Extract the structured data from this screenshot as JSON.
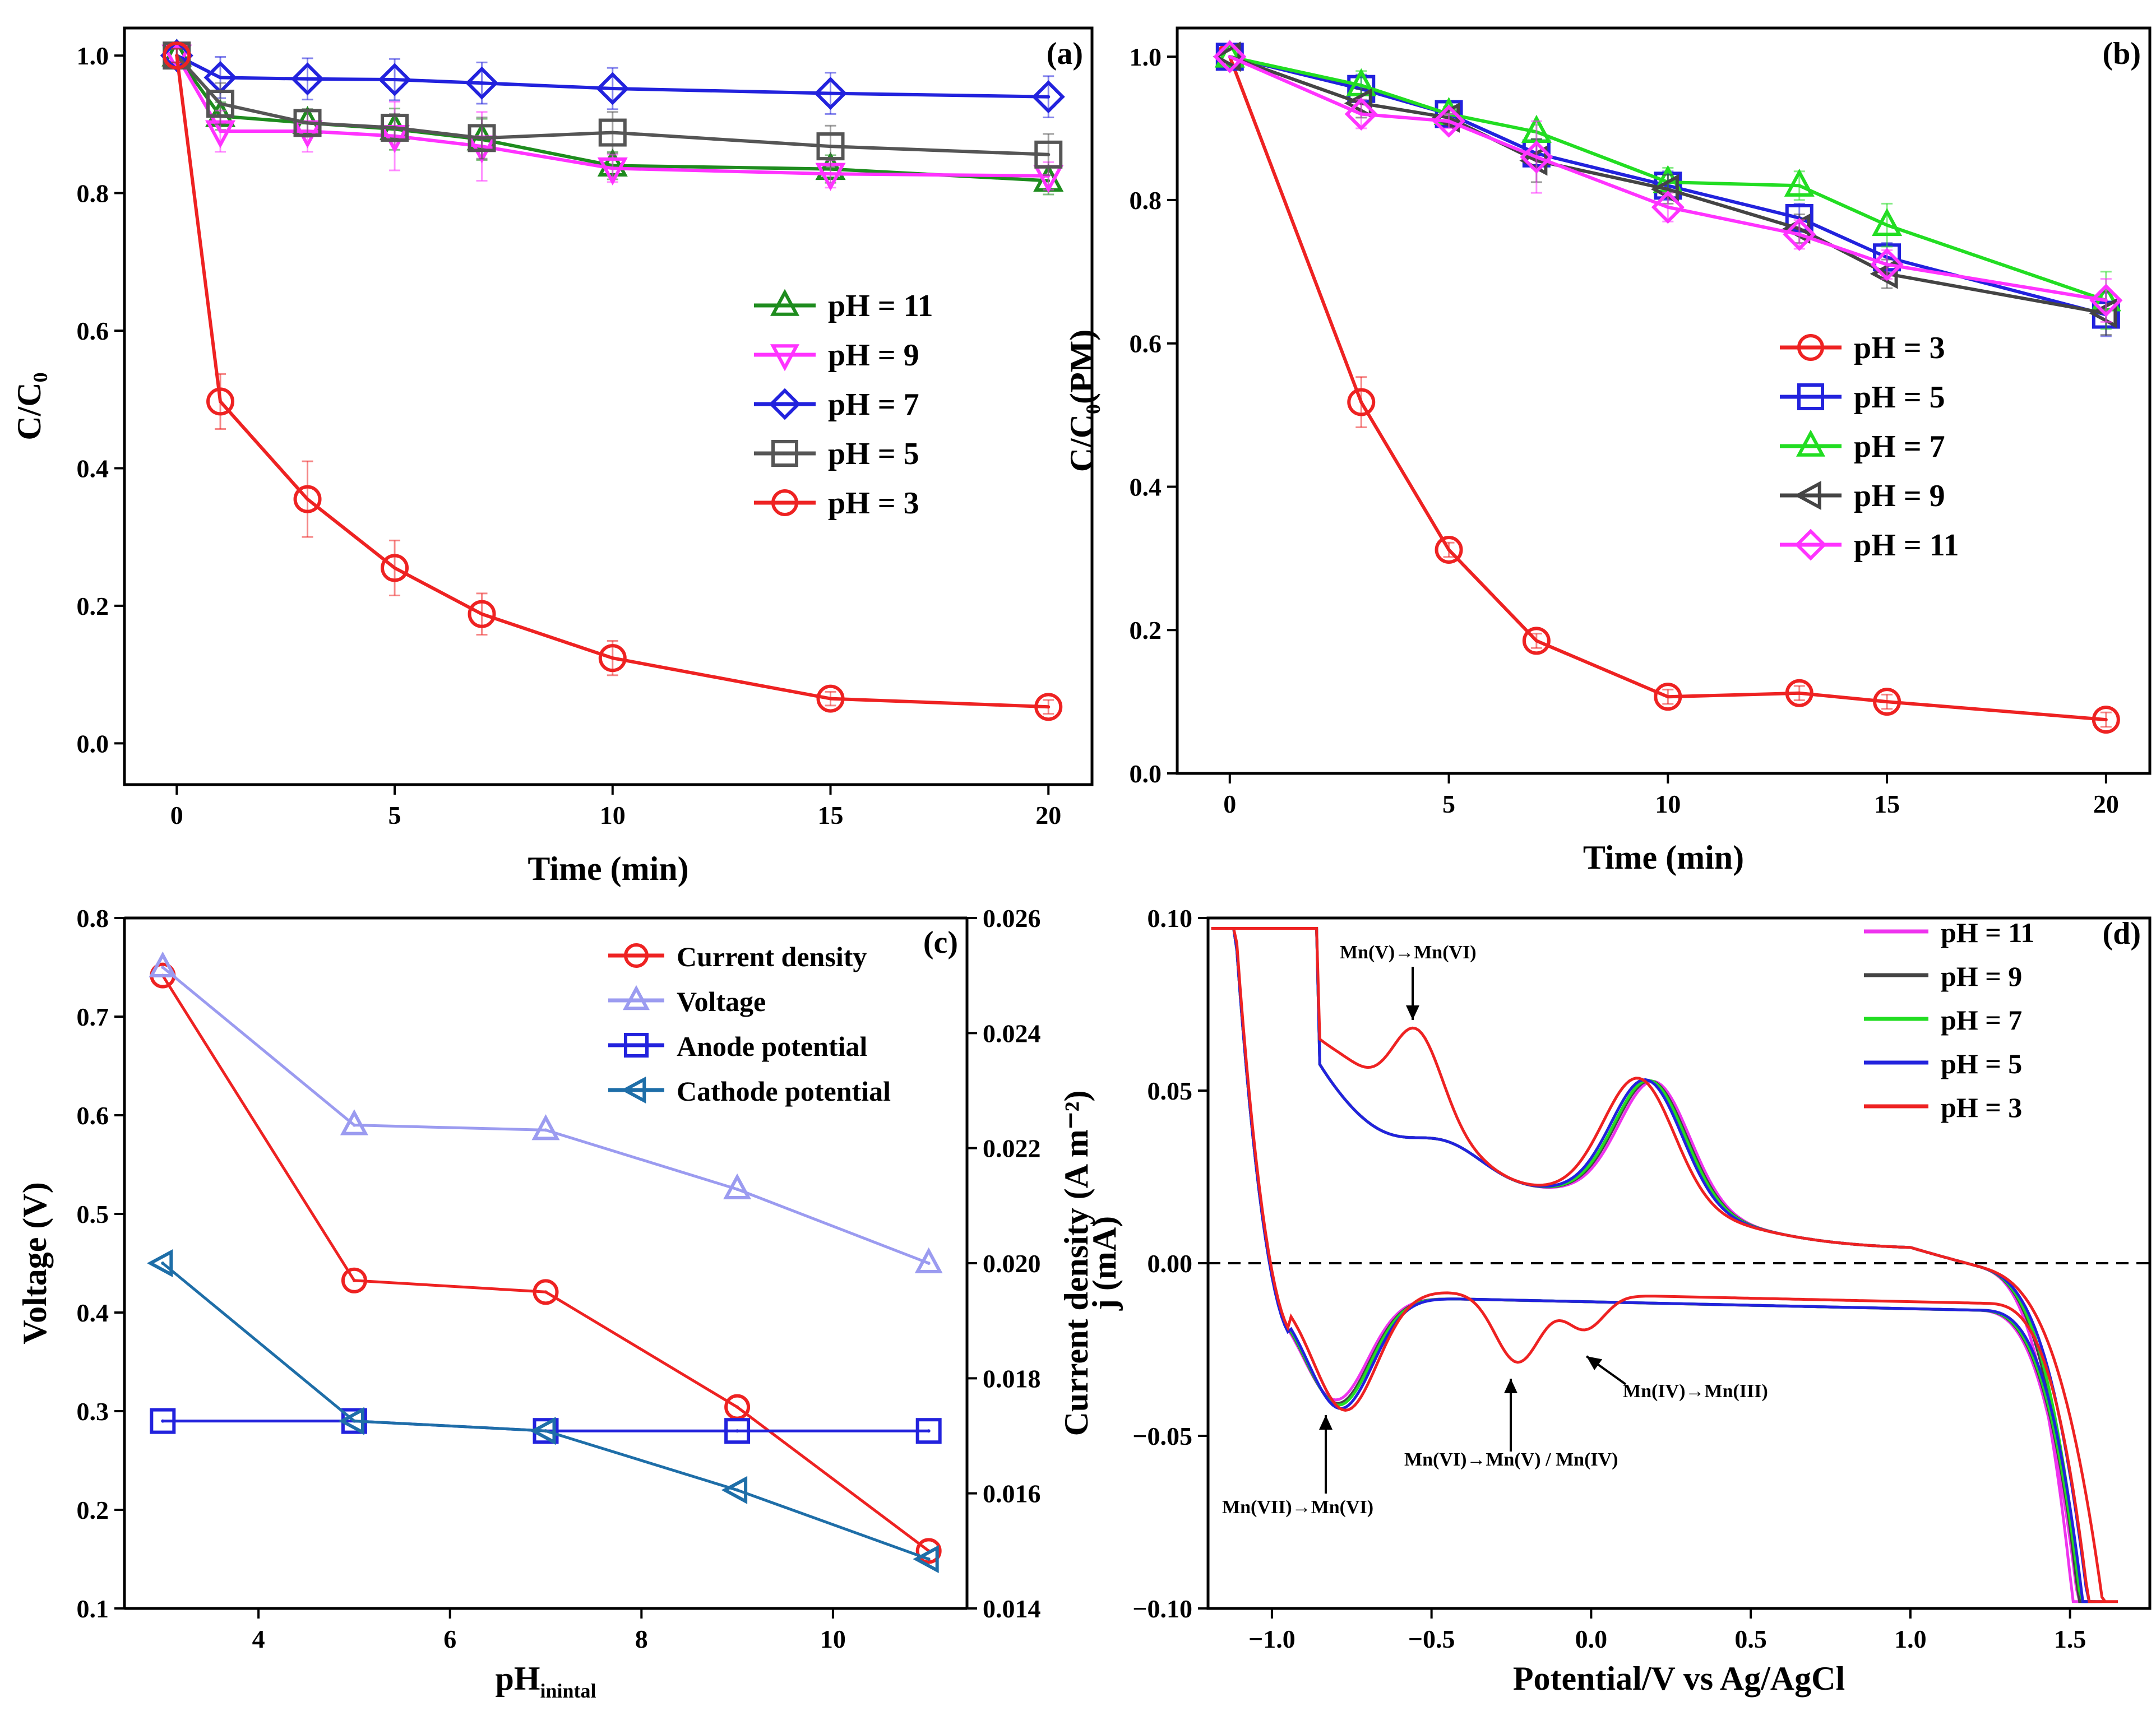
{
  "chart_data": [
    {
      "panel": "(a)",
      "type": "line",
      "xlabel": "Time (min)",
      "ylabel": "C/C₀",
      "xlim": [
        -1.2,
        21
      ],
      "ylim": [
        -0.06,
        1.04
      ],
      "xticks": [
        0,
        5,
        10,
        15,
        20
      ],
      "xtick_labels": [
        "0",
        "5",
        "10",
        "15",
        "20"
      ],
      "yticks": [
        0.0,
        0.2,
        0.4,
        0.6,
        0.8,
        1.0
      ],
      "ytick_labels": [
        "0.0",
        "0.2",
        "0.4",
        "0.6",
        "0.8",
        "1.0"
      ],
      "legend_position": "right-middle",
      "series": [
        {
          "name": "pH = 11",
          "color": "#1e8c1e",
          "marker": "triangle-up",
          "x": [
            0,
            1,
            3,
            5,
            7,
            10,
            15,
            20
          ],
          "y": [
            1.0,
            0.912,
            0.902,
            0.893,
            0.878,
            0.84,
            0.835,
            0.818
          ],
          "err": [
            0.01,
            0.02,
            0.02,
            0.03,
            0.03,
            0.02,
            0.02,
            0.02
          ]
        },
        {
          "name": "pH = 9",
          "color": "#ff33ff",
          "marker": "triangle-down",
          "x": [
            0,
            1,
            3,
            5,
            7,
            10,
            15,
            20
          ],
          "y": [
            1.0,
            0.89,
            0.89,
            0.883,
            0.868,
            0.836,
            0.828,
            0.825
          ],
          "err": [
            0.01,
            0.03,
            0.03,
            0.05,
            0.05,
            0.02,
            0.02,
            0.02
          ]
        },
        {
          "name": "pH = 7",
          "color": "#2222dd",
          "marker": "diamond",
          "x": [
            0,
            1,
            3,
            5,
            7,
            10,
            15,
            20
          ],
          "y": [
            1.0,
            0.968,
            0.966,
            0.965,
            0.96,
            0.952,
            0.945,
            0.94
          ],
          "err": [
            0.01,
            0.03,
            0.03,
            0.03,
            0.03,
            0.03,
            0.03,
            0.03
          ]
        },
        {
          "name": "pH = 5",
          "color": "#555555",
          "marker": "square",
          "x": [
            0,
            1,
            3,
            5,
            7,
            10,
            15,
            20
          ],
          "y": [
            1.0,
            0.93,
            0.902,
            0.895,
            0.88,
            0.888,
            0.868,
            0.856
          ],
          "err": [
            0.01,
            0.03,
            0.02,
            0.02,
            0.03,
            0.03,
            0.03,
            0.03
          ]
        },
        {
          "name": "pH = 3",
          "color": "#ee2222",
          "marker": "circle",
          "x": [
            0,
            1,
            3,
            5,
            7,
            10,
            15,
            20
          ],
          "y": [
            1.0,
            0.497,
            0.355,
            0.255,
            0.188,
            0.124,
            0.065,
            0.053
          ],
          "err": [
            0.01,
            0.04,
            0.055,
            0.04,
            0.03,
            0.025,
            0.01,
            0.01
          ]
        }
      ]
    },
    {
      "panel": "(b)",
      "type": "line",
      "xlabel": "Time (min)",
      "ylabel": "C/C₀(PM)",
      "xlim": [
        -1.2,
        21
      ],
      "ylim": [
        0,
        1.04
      ],
      "xticks": [
        0,
        5,
        10,
        15,
        20
      ],
      "xtick_labels": [
        "0",
        "5",
        "10",
        "15",
        "20"
      ],
      "yticks": [
        0.0,
        0.2,
        0.4,
        0.6,
        0.8,
        1.0
      ],
      "ytick_labels": [
        "0.0",
        "0.2",
        "0.4",
        "0.6",
        "0.8",
        "1.0"
      ],
      "legend_position": "right-middle",
      "series": [
        {
          "name": "pH = 3",
          "color": "#ee2222",
          "marker": "circle",
          "x": [
            0,
            3,
            5,
            7,
            10,
            13,
            15,
            20
          ],
          "y": [
            1.0,
            0.518,
            0.312,
            0.185,
            0.107,
            0.112,
            0.1,
            0.075
          ],
          "err": [
            0,
            0.035,
            0.01,
            0.01,
            0.01,
            0.01,
            0.01,
            0.01
          ]
        },
        {
          "name": "pH = 5",
          "color": "#2222dd",
          "marker": "square",
          "x": [
            0,
            3,
            5,
            7,
            10,
            13,
            15,
            20
          ],
          "y": [
            1.0,
            0.955,
            0.92,
            0.865,
            0.82,
            0.775,
            0.72,
            0.64
          ],
          "err": [
            0,
            0.02,
            0.01,
            0.02,
            0.02,
            0.02,
            0.02,
            0.03
          ]
        },
        {
          "name": "pH = 7",
          "color": "#22dd22",
          "marker": "triangle-up",
          "x": [
            0,
            3,
            5,
            7,
            10,
            13,
            15,
            20
          ],
          "y": [
            1.0,
            0.96,
            0.92,
            0.895,
            0.825,
            0.82,
            0.765,
            0.66
          ],
          "err": [
            0,
            0.02,
            0.01,
            0.01,
            0.02,
            0.02,
            0.03,
            0.04
          ]
        },
        {
          "name": "pH = 9",
          "color": "#444444",
          "marker": "triangle-left",
          "x": [
            0,
            3,
            5,
            7,
            10,
            13,
            15,
            20
          ],
          "y": [
            1.0,
            0.935,
            0.915,
            0.855,
            0.815,
            0.76,
            0.697,
            0.642
          ],
          "err": [
            0,
            0.02,
            0.01,
            0.03,
            0.02,
            0.02,
            0.02,
            0.03
          ]
        },
        {
          "name": "pH = 11",
          "color": "#ff33ff",
          "marker": "diamond",
          "x": [
            0,
            3,
            5,
            7,
            10,
            13,
            15,
            20
          ],
          "y": [
            1.0,
            0.92,
            0.91,
            0.86,
            0.79,
            0.752,
            0.71,
            0.66
          ],
          "err": [
            0,
            0.02,
            0.01,
            0.05,
            0.02,
            0.02,
            0.02,
            0.03
          ]
        }
      ]
    },
    {
      "panel": "(c)",
      "type": "line",
      "xlabel": "pH",
      "xlabel_subscript": "inintal",
      "ylabel": "Voltage (V)",
      "ylabel_right": "Current density (A m⁻²)",
      "xlim": [
        2.6,
        11.4
      ],
      "ylim": [
        0.1,
        0.8
      ],
      "ylim_right": [
        0.014,
        0.026
      ],
      "xticks": [
        4,
        6,
        8,
        10
      ],
      "xtick_labels": [
        "4",
        "6",
        "8",
        "10"
      ],
      "yticks": [
        0.1,
        0.2,
        0.3,
        0.4,
        0.5,
        0.6,
        0.7,
        0.8
      ],
      "ytick_labels": [
        "0.1",
        "0.2",
        "0.3",
        "0.4",
        "0.5",
        "0.6",
        "0.7",
        "0.8"
      ],
      "yticks_right": [
        0.014,
        0.016,
        0.018,
        0.02,
        0.022,
        0.024,
        0.026
      ],
      "ytick_labels_right": [
        "0.014",
        "0.016",
        "0.018",
        "0.020",
        "0.022",
        "0.024",
        "0.026"
      ],
      "legend_position": "top-right",
      "left_axis_color": "#1a1adc",
      "right_axis_color": "#ee2222",
      "series": [
        {
          "name": "Current density",
          "color": "#ee2222",
          "marker": "circle",
          "axis": "right",
          "x": [
            3,
            5,
            7,
            9,
            11
          ],
          "y": [
            0.025,
            0.0197,
            0.0195,
            0.0175,
            0.015
          ]
        },
        {
          "name": "Voltage",
          "color": "#9b9bf0",
          "marker": "triangle-up",
          "axis": "left",
          "x": [
            3,
            5,
            7,
            9,
            11
          ],
          "y": [
            0.75,
            0.59,
            0.585,
            0.525,
            0.45
          ]
        },
        {
          "name": "Anode potential",
          "color": "#2222dd",
          "marker": "square",
          "axis": "left",
          "x": [
            3,
            5,
            7,
            9,
            11
          ],
          "y": [
            0.29,
            0.29,
            0.28,
            0.28,
            0.28
          ]
        },
        {
          "name": "Cathode potential",
          "color": "#1e6ea8",
          "marker": "triangle-left",
          "axis": "left",
          "x": [
            3,
            5,
            7,
            9,
            11
          ],
          "y": [
            0.45,
            0.29,
            0.28,
            0.22,
            0.15
          ]
        }
      ]
    },
    {
      "panel": "(d)",
      "type": "line",
      "xlabel": "Potential/V vs Ag/AgCl",
      "ylabel": "j (mA)",
      "xlim": [
        -1.2,
        1.75
      ],
      "ylim": [
        -0.1,
        0.1
      ],
      "xticks": [
        -1.0,
        -0.5,
        0.0,
        0.5,
        1.0,
        1.5
      ],
      "xtick_labels": [
        "−1.0",
        "−0.5",
        "0.0",
        "0.5",
        "1.0",
        "1.5"
      ],
      "yticks": [
        -0.1,
        -0.05,
        0.0,
        0.05,
        0.1
      ],
      "ytick_labels": [
        "−0.10",
        "−0.05",
        "0.00",
        "0.05",
        "0.10"
      ],
      "legend_position": "top-right",
      "series": [
        {
          "name": "pH = 11",
          "color": "#ee33ee",
          "curve": "cv",
          "shift": 0.0
        },
        {
          "name": "pH = 9",
          "color": "#444444",
          "curve": "cv",
          "shift": 0.02
        },
        {
          "name": "pH = 7",
          "color": "#22dd22",
          "curve": "cv",
          "shift": 0.03
        },
        {
          "name": "pH = 5",
          "color": "#2222dd",
          "curve": "cv",
          "shift": 0.05
        },
        {
          "name": "pH = 3",
          "color": "#ee2222",
          "curve": "cv3",
          "shift": 0.1
        }
      ],
      "annotations": [
        {
          "text": "Mn(V)→Mn(VI)"
        },
        {
          "text": "Mn(IV)→Mn(III)"
        },
        {
          "text": "Mn(VI)→Mn(V) / Mn(IV)"
        },
        {
          "text": "Mn(VII)→Mn(VI)"
        }
      ]
    }
  ]
}
